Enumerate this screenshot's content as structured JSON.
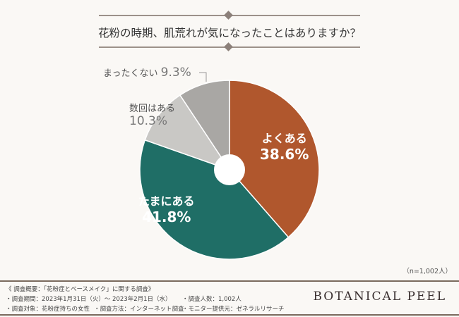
{
  "chart_data": {
    "type": "pie",
    "title": "花粉の時期、肌荒れが気になったことはありますか？",
    "categories": [
      "よくある",
      "たまにある",
      "数回はある",
      "まったくない"
    ],
    "values": [
      38.6,
      41.8,
      10.3,
      9.3
    ],
    "value_labels": [
      "38.6%",
      "41.8%",
      "10.3%",
      "9.3%"
    ],
    "colors": [
      "#b0572d",
      "#1f6e66",
      "#c9c8c5",
      "#a9a7a4"
    ],
    "sample_note": "（n=1,002人）"
  },
  "footer": {
    "summary": "《 調査概要：「花粉症とベースメイク」に関する調査》",
    "period": "・調査期間：2023年1月31日（火）～ 2023年2月1日（水）",
    "count": "・調査人数：1,002人",
    "target": "・調査対象：花粉症持ちの女性",
    "method": "・調査方法：インターネット調査",
    "provider": "・モニター提供元：ゼネラルリサーチ",
    "brand": "BOTANICAL PEEL"
  }
}
